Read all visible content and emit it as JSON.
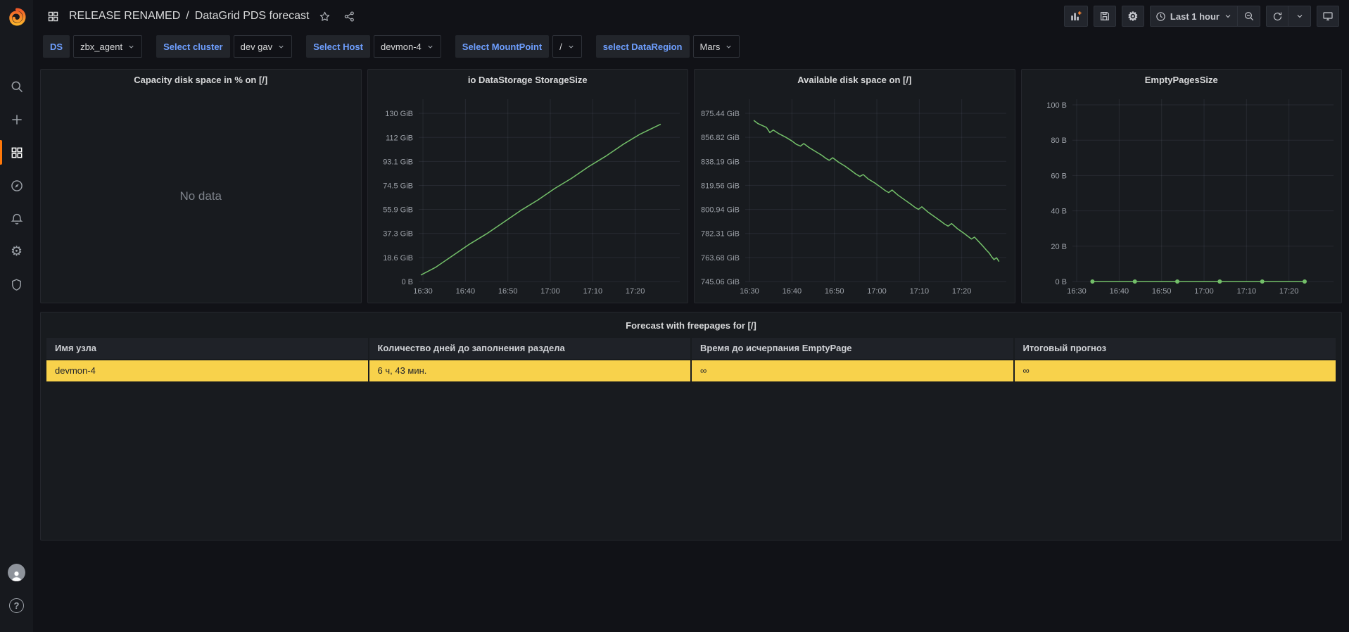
{
  "header": {
    "folder": "RELEASE RENAMED",
    "separator": "/",
    "title": "DataGrid PDS forecast"
  },
  "toolbar": {
    "time_range": "Last 1 hour"
  },
  "icons": {
    "gear": "⚙",
    "help": "?"
  },
  "filters": [
    {
      "label": "DS",
      "value": "zbx_agent"
    },
    {
      "label": "Select cluster",
      "value": "dev gav"
    },
    {
      "label": "Select Host",
      "value": "devmon-4"
    },
    {
      "label": "Select MountPoint",
      "value": "/"
    },
    {
      "label": "select DataRegion",
      "value": "Mars"
    }
  ],
  "panels": {
    "capacity": {
      "title": "Capacity disk space in % on [/]",
      "no_data": "No data"
    }
  },
  "chart_data": [
    {
      "type": "line",
      "title": "io DataStorage StorageSize",
      "color": "#73bf69",
      "legend_position": "none",
      "grid": true,
      "headroom": 20,
      "t_domain": [
        29,
        90.5
      ],
      "x_ticks": [
        {
          "t": 30,
          "label": "16:30"
        },
        {
          "t": 40,
          "label": "16:40"
        },
        {
          "t": 50,
          "label": "16:50"
        },
        {
          "t": 60,
          "label": "17:00"
        },
        {
          "t": 70,
          "label": "17:10"
        },
        {
          "t": 80,
          "label": "17:20"
        }
      ],
      "y_ticks": [
        {
          "v": 0,
          "label": "0 B"
        },
        {
          "v": 18.6,
          "label": "18.6 GiB"
        },
        {
          "v": 37.3,
          "label": "37.3 GiB"
        },
        {
          "v": 55.9,
          "label": "55.9 GiB"
        },
        {
          "v": 74.5,
          "label": "74.5 GiB"
        },
        {
          "v": 93.1,
          "label": "93.1 GiB"
        },
        {
          "v": 111.7,
          "label": "112 GiB"
        },
        {
          "v": 130.4,
          "label": "130 GiB"
        }
      ],
      "markers": false,
      "points": [
        [
          29.5,
          5
        ],
        [
          33,
          11
        ],
        [
          37,
          20
        ],
        [
          41,
          29
        ],
        [
          45,
          37
        ],
        [
          49,
          46
        ],
        [
          53,
          55
        ],
        [
          57,
          63
        ],
        [
          61,
          72
        ],
        [
          65,
          80
        ],
        [
          69,
          89
        ],
        [
          73,
          97
        ],
        [
          77,
          106
        ],
        [
          81,
          114
        ],
        [
          86,
          122
        ]
      ]
    },
    {
      "type": "line",
      "title": "Available disk space on [/]",
      "color": "#73bf69",
      "legend_position": "none",
      "grid": true,
      "headroom": 20,
      "t_domain": [
        29,
        90.5
      ],
      "x_ticks": [
        {
          "t": 30,
          "label": "16:30"
        },
        {
          "t": 40,
          "label": "16:40"
        },
        {
          "t": 50,
          "label": "16:50"
        },
        {
          "t": 60,
          "label": "17:00"
        },
        {
          "t": 70,
          "label": "17:10"
        },
        {
          "t": 80,
          "label": "17:20"
        }
      ],
      "y_ticks": [
        {
          "v": 745.06,
          "label": "745.06 GiB"
        },
        {
          "v": 763.68,
          "label": "763.68 GiB"
        },
        {
          "v": 782.31,
          "label": "782.31 GiB"
        },
        {
          "v": 800.94,
          "label": "800.94 GiB"
        },
        {
          "v": 819.56,
          "label": "819.56 GiB"
        },
        {
          "v": 838.19,
          "label": "838.19 GiB"
        },
        {
          "v": 856.82,
          "label": "856.82 GiB"
        },
        {
          "v": 875.44,
          "label": "875.44 GiB"
        }
      ],
      "markers": false,
      "points": [
        [
          31,
          870
        ],
        [
          32,
          867.5
        ],
        [
          33,
          866
        ],
        [
          34,
          864.5
        ],
        [
          34.8,
          860.5
        ],
        [
          35.6,
          862.5
        ],
        [
          37,
          859.5
        ],
        [
          38.5,
          857
        ],
        [
          40,
          854
        ],
        [
          41,
          851.5
        ],
        [
          42,
          850
        ],
        [
          42.8,
          852
        ],
        [
          44,
          849
        ],
        [
          45.5,
          846
        ],
        [
          47,
          843
        ],
        [
          48,
          840.5
        ],
        [
          48.8,
          839
        ],
        [
          49.6,
          841
        ],
        [
          51,
          837.5
        ],
        [
          52.5,
          834.5
        ],
        [
          54,
          831
        ],
        [
          55,
          828.5
        ],
        [
          56,
          826.5
        ],
        [
          56.8,
          828
        ],
        [
          58,
          824.5
        ],
        [
          59.5,
          821.5
        ],
        [
          61,
          818
        ],
        [
          62,
          815.5
        ],
        [
          62.8,
          814
        ],
        [
          63.6,
          816
        ],
        [
          65,
          812
        ],
        [
          66.5,
          808.5
        ],
        [
          68,
          805
        ],
        [
          69,
          802.5
        ],
        [
          69.8,
          801
        ],
        [
          70.6,
          803
        ],
        [
          72,
          799
        ],
        [
          73.5,
          795.5
        ],
        [
          75,
          792
        ],
        [
          76,
          789.5
        ],
        [
          76.8,
          788
        ],
        [
          77.6,
          790
        ],
        [
          79,
          786
        ],
        [
          80.5,
          782.5
        ],
        [
          81.5,
          780
        ],
        [
          82.3,
          778
        ],
        [
          83,
          779.5
        ],
        [
          84,
          776
        ],
        [
          85,
          772.5
        ],
        [
          85.8,
          769.5
        ],
        [
          86.5,
          767
        ],
        [
          87,
          764.5
        ],
        [
          87.6,
          762
        ],
        [
          88.2,
          763.5
        ],
        [
          88.8,
          760.5
        ]
      ]
    },
    {
      "type": "line",
      "title": "EmptyPagesSize",
      "color": "#73bf69",
      "legend_position": "none",
      "grid": true,
      "headroom": 8,
      "t_domain": [
        29,
        90.5
      ],
      "x_ticks": [
        {
          "t": 30,
          "label": "16:30"
        },
        {
          "t": 40,
          "label": "16:40"
        },
        {
          "t": 50,
          "label": "16:50"
        },
        {
          "t": 60,
          "label": "17:00"
        },
        {
          "t": 70,
          "label": "17:10"
        },
        {
          "t": 80,
          "label": "17:20"
        }
      ],
      "y_ticks": [
        {
          "v": 0,
          "label": "0 B"
        },
        {
          "v": 20,
          "label": "20 B"
        },
        {
          "v": 40,
          "label": "40 B"
        },
        {
          "v": 60,
          "label": "60 B"
        },
        {
          "v": 80,
          "label": "80 B"
        },
        {
          "v": 100,
          "label": "100 B"
        }
      ],
      "markers": true,
      "points": [
        [
          33.7,
          0
        ],
        [
          43.7,
          0
        ],
        [
          53.7,
          0
        ],
        [
          63.7,
          0
        ],
        [
          73.7,
          0
        ],
        [
          83.7,
          0
        ]
      ]
    }
  ],
  "table": {
    "title": "Forecast with freepages for [/]",
    "columns": [
      "Имя узла",
      "Количество дней до заполнения раздела",
      "Время до исчерпания EmptyPage",
      "Итоговый прогноз"
    ],
    "rows": [
      {
        "cells": [
          "devmon-4",
          "6 ч, 43 мин.",
          "∞",
          "∞"
        ],
        "highlight": "#f8d24b"
      }
    ]
  }
}
